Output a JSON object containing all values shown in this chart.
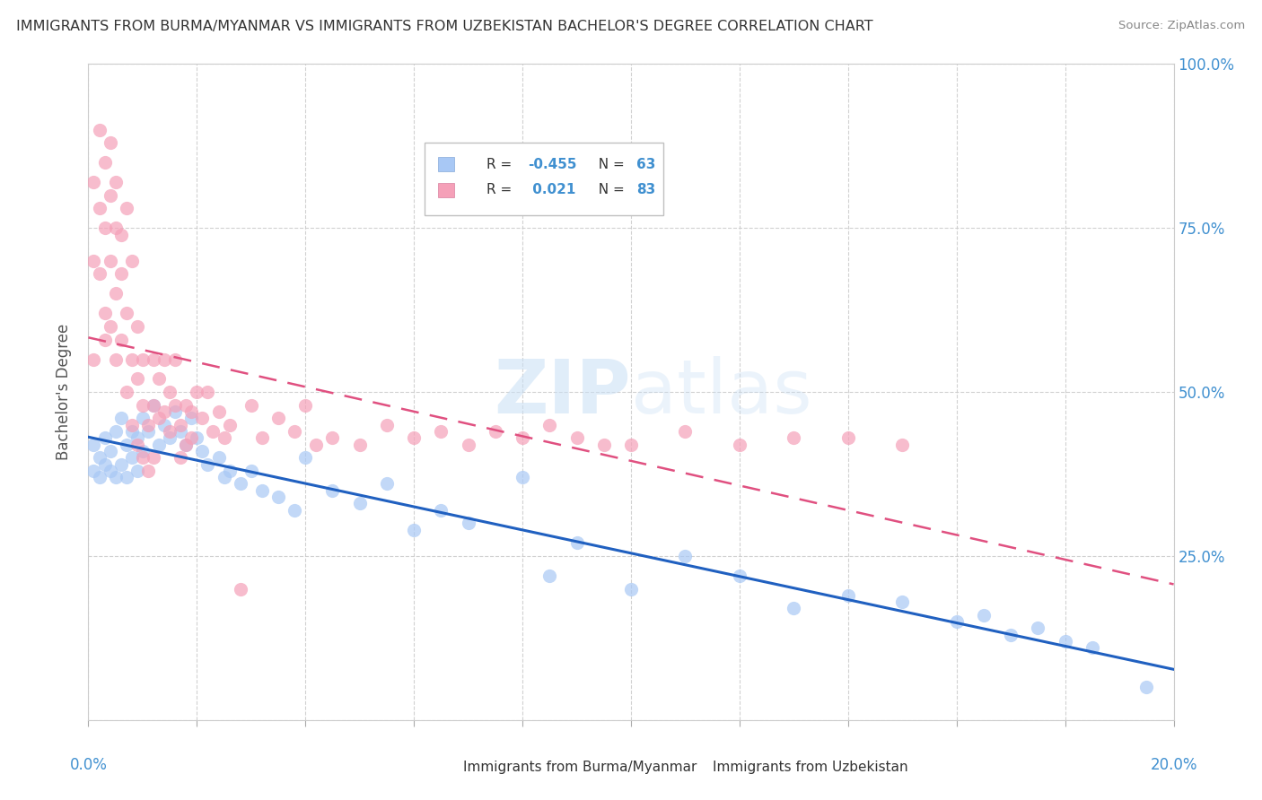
{
  "title": "IMMIGRANTS FROM BURMA/MYANMAR VS IMMIGRANTS FROM UZBEKISTAN BACHELOR'S DEGREE CORRELATION CHART",
  "source": "Source: ZipAtlas.com",
  "ylabel": "Bachelor's Degree",
  "yaxis_ticks": [
    0.0,
    0.25,
    0.5,
    0.75,
    1.0
  ],
  "yaxis_labels": [
    "",
    "25.0%",
    "50.0%",
    "75.0%",
    "100.0%"
  ],
  "xlim": [
    0.0,
    0.2
  ],
  "ylim": [
    0.0,
    1.0
  ],
  "series": [
    {
      "name": "Immigrants from Burma/Myanmar",
      "R": -0.455,
      "N": 63,
      "scatter_color": "#a8c8f5",
      "line_color": "#2060c0"
    },
    {
      "name": "Immigrants from Uzbekistan",
      "R": 0.021,
      "N": 83,
      "scatter_color": "#f5a0b8",
      "line_color": "#e05080"
    }
  ],
  "watermark": "ZIPatlas",
  "background_color": "#ffffff",
  "axis_label_color": "#4090d0",
  "scatter_blue_x": [
    0.001,
    0.001,
    0.002,
    0.002,
    0.003,
    0.003,
    0.004,
    0.004,
    0.005,
    0.005,
    0.006,
    0.006,
    0.007,
    0.007,
    0.008,
    0.008,
    0.009,
    0.009,
    0.01,
    0.01,
    0.011,
    0.012,
    0.013,
    0.014,
    0.015,
    0.016,
    0.017,
    0.018,
    0.019,
    0.02,
    0.021,
    0.022,
    0.024,
    0.025,
    0.026,
    0.028,
    0.03,
    0.032,
    0.035,
    0.038,
    0.04,
    0.045,
    0.05,
    0.055,
    0.06,
    0.065,
    0.07,
    0.08,
    0.085,
    0.09,
    0.1,
    0.11,
    0.12,
    0.13,
    0.14,
    0.15,
    0.16,
    0.165,
    0.17,
    0.175,
    0.18,
    0.185,
    0.195
  ],
  "scatter_blue_y": [
    0.42,
    0.38,
    0.4,
    0.37,
    0.43,
    0.39,
    0.41,
    0.38,
    0.44,
    0.37,
    0.46,
    0.39,
    0.42,
    0.37,
    0.44,
    0.4,
    0.43,
    0.38,
    0.46,
    0.41,
    0.44,
    0.48,
    0.42,
    0.45,
    0.43,
    0.47,
    0.44,
    0.42,
    0.46,
    0.43,
    0.41,
    0.39,
    0.4,
    0.37,
    0.38,
    0.36,
    0.38,
    0.35,
    0.34,
    0.32,
    0.4,
    0.35,
    0.33,
    0.36,
    0.29,
    0.32,
    0.3,
    0.37,
    0.22,
    0.27,
    0.2,
    0.25,
    0.22,
    0.17,
    0.19,
    0.18,
    0.15,
    0.16,
    0.13,
    0.14,
    0.12,
    0.11,
    0.05
  ],
  "scatter_pink_x": [
    0.001,
    0.001,
    0.001,
    0.002,
    0.002,
    0.002,
    0.003,
    0.003,
    0.003,
    0.003,
    0.004,
    0.004,
    0.004,
    0.004,
    0.005,
    0.005,
    0.005,
    0.005,
    0.006,
    0.006,
    0.006,
    0.007,
    0.007,
    0.007,
    0.008,
    0.008,
    0.008,
    0.009,
    0.009,
    0.009,
    0.01,
    0.01,
    0.01,
    0.011,
    0.011,
    0.012,
    0.012,
    0.012,
    0.013,
    0.013,
    0.014,
    0.014,
    0.015,
    0.015,
    0.016,
    0.016,
    0.017,
    0.017,
    0.018,
    0.018,
    0.019,
    0.019,
    0.02,
    0.021,
    0.022,
    0.023,
    0.024,
    0.025,
    0.026,
    0.028,
    0.03,
    0.032,
    0.035,
    0.038,
    0.04,
    0.042,
    0.045,
    0.05,
    0.055,
    0.06,
    0.065,
    0.07,
    0.075,
    0.08,
    0.085,
    0.09,
    0.095,
    0.1,
    0.11,
    0.12,
    0.13,
    0.14,
    0.15
  ],
  "scatter_pink_y": [
    0.7,
    0.55,
    0.82,
    0.68,
    0.78,
    0.9,
    0.62,
    0.75,
    0.85,
    0.58,
    0.7,
    0.6,
    0.8,
    0.88,
    0.65,
    0.75,
    0.55,
    0.82,
    0.58,
    0.68,
    0.74,
    0.5,
    0.62,
    0.78,
    0.45,
    0.55,
    0.7,
    0.42,
    0.52,
    0.6,
    0.4,
    0.48,
    0.55,
    0.38,
    0.45,
    0.55,
    0.48,
    0.4,
    0.52,
    0.46,
    0.55,
    0.47,
    0.5,
    0.44,
    0.55,
    0.48,
    0.45,
    0.4,
    0.48,
    0.42,
    0.47,
    0.43,
    0.5,
    0.46,
    0.5,
    0.44,
    0.47,
    0.43,
    0.45,
    0.2,
    0.48,
    0.43,
    0.46,
    0.44,
    0.48,
    0.42,
    0.43,
    0.42,
    0.45,
    0.43,
    0.44,
    0.42,
    0.44,
    0.43,
    0.45,
    0.43,
    0.42,
    0.42,
    0.44,
    0.42,
    0.43,
    0.43,
    0.42
  ]
}
